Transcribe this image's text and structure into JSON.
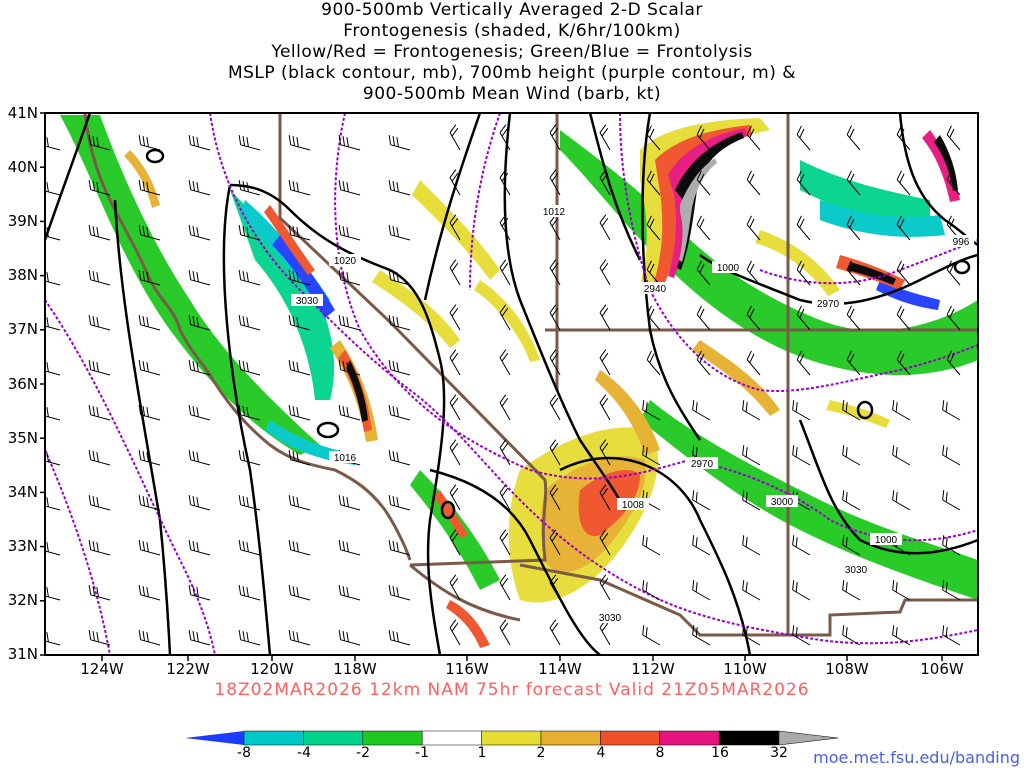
{
  "title_lines": [
    "900-500mb Vertically Averaged 2-D Scalar",
    "Frontogenesis (shaded, K/6hr/100km)",
    "Yellow/Red = Frontogenesis;  Green/Blue = Frontolysis",
    "MSLP (black contour, mb), 700mb height (purple contour, m) &",
    "900-500mb Mean Wind (barb, kt)"
  ],
  "lat_labels": [
    "41N",
    "40N",
    "39N",
    "38N",
    "37N",
    "36N",
    "35N",
    "34N",
    "33N",
    "32N",
    "31N"
  ],
  "lon_labels": [
    "124W",
    "122W",
    "120W",
    "118W",
    "116W",
    "114W",
    "112W",
    "110W",
    "108W",
    "106W"
  ],
  "run_info": "18Z02MAR2026 12km NAM 75hr forecast Valid 21Z05MAR2026",
  "colorbar": {
    "labels": [
      "-8",
      "-4",
      "-2",
      "-1",
      "1",
      "2",
      "4",
      "8",
      "16",
      "32"
    ],
    "colors": [
      "#1e3cff",
      "#00c8c8",
      "#00d28c",
      "#1ec81e",
      "#ffffff",
      "#e6dc32",
      "#e6af2d",
      "#f05028",
      "#e6147d",
      "#000000",
      "#aaaaaa"
    ]
  },
  "contour_labels": {
    "mslp": [
      "1020",
      "1016",
      "1012",
      "1008",
      "1000",
      "1000",
      "996"
    ],
    "height700": [
      "3030",
      "3030",
      "3030",
      "2970",
      "2970",
      "2940",
      "3000"
    ]
  },
  "credit": "moe.met.fsu.edu/banding",
  "colors": {
    "mslp": "#000000",
    "height700": "#9900cc",
    "borders": "#7a5a48",
    "runinfo": "#ff5f5f",
    "credit": "#4a5ee8"
  }
}
